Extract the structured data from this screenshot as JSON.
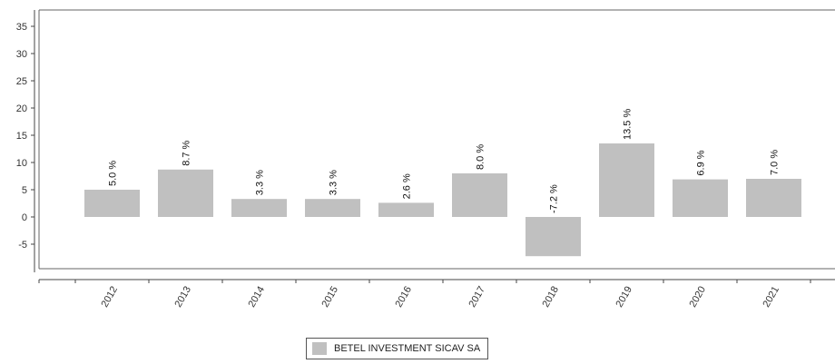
{
  "chart_data": {
    "type": "bar",
    "categories": [
      "2012",
      "2013",
      "2014",
      "2015",
      "2016",
      "2017",
      "2018",
      "2019",
      "2020",
      "2021"
    ],
    "series": [
      {
        "name": "BETEL INVESTMENT SICAV SA",
        "values": [
          5.0,
          8.7,
          3.3,
          3.3,
          2.6,
          8.0,
          -7.2,
          13.5,
          6.9,
          7.0
        ],
        "labels": [
          "5.0 %",
          "8.7 %",
          "3.3 %",
          "3.3 %",
          "2.6 %",
          "8.0 %",
          "-7.2 %",
          "13.5 %",
          "6.9 %",
          "7.0 %"
        ],
        "color": "#c0c0c0"
      }
    ],
    "y_ticks": [
      -5,
      0,
      5,
      10,
      15,
      20,
      25,
      30,
      35
    ],
    "ylim": [
      -9.5,
      38
    ],
    "grid": false,
    "legend_position": "bottom-center"
  }
}
